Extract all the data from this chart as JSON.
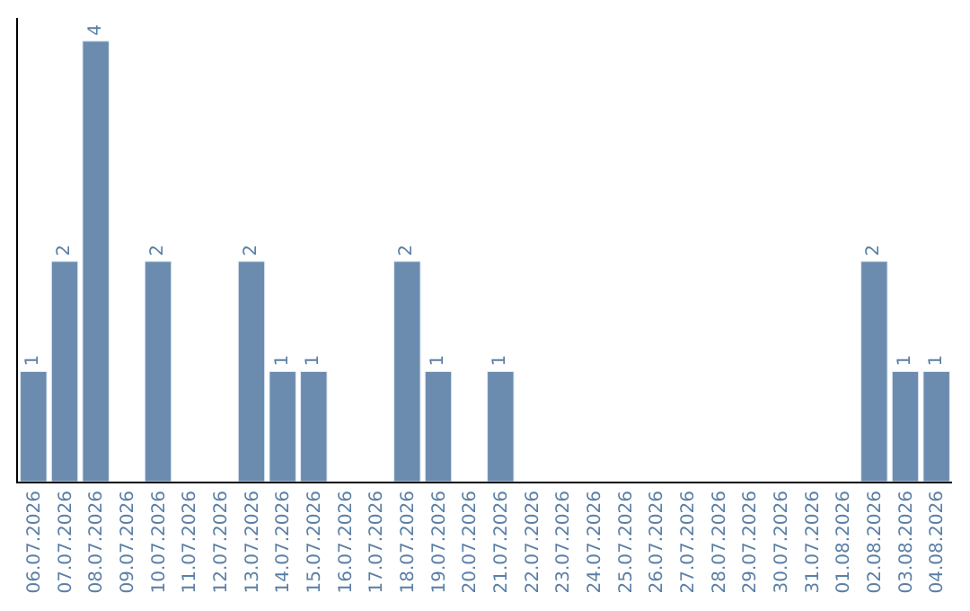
{
  "chart_data": {
    "type": "bar",
    "categories": [
      "06.07.2026",
      "07.07.2026",
      "08.07.2026",
      "09.07.2026",
      "10.07.2026",
      "11.07.2026",
      "12.07.2026",
      "13.07.2026",
      "14.07.2026",
      "15.07.2026",
      "16.07.2026",
      "17.07.2026",
      "18.07.2026",
      "19.07.2026",
      "20.07.2026",
      "21.07.2026",
      "22.07.2026",
      "23.07.2026",
      "24.07.2026",
      "25.07.2026",
      "26.07.2026",
      "27.07.2026",
      "28.07.2026",
      "29.07.2026",
      "30.07.2026",
      "31.07.2026",
      "01.08.2026",
      "02.08.2026",
      "03.08.2026",
      "04.08.2026"
    ],
    "values": [
      1,
      2,
      4,
      null,
      2,
      null,
      null,
      2,
      1,
      1,
      null,
      null,
      2,
      1,
      null,
      1,
      null,
      null,
      null,
      null,
      null,
      null,
      null,
      null,
      null,
      null,
      null,
      2,
      1,
      1
    ],
    "value_labels": [
      "1",
      "2",
      "4",
      null,
      "2",
      null,
      null,
      "2",
      "1",
      "1",
      null,
      null,
      "2",
      "1",
      null,
      "1",
      null,
      null,
      null,
      null,
      null,
      null,
      null,
      null,
      null,
      null,
      null,
      "2",
      "1",
      "1"
    ],
    "color": "#6b8cae",
    "legend": false
  }
}
